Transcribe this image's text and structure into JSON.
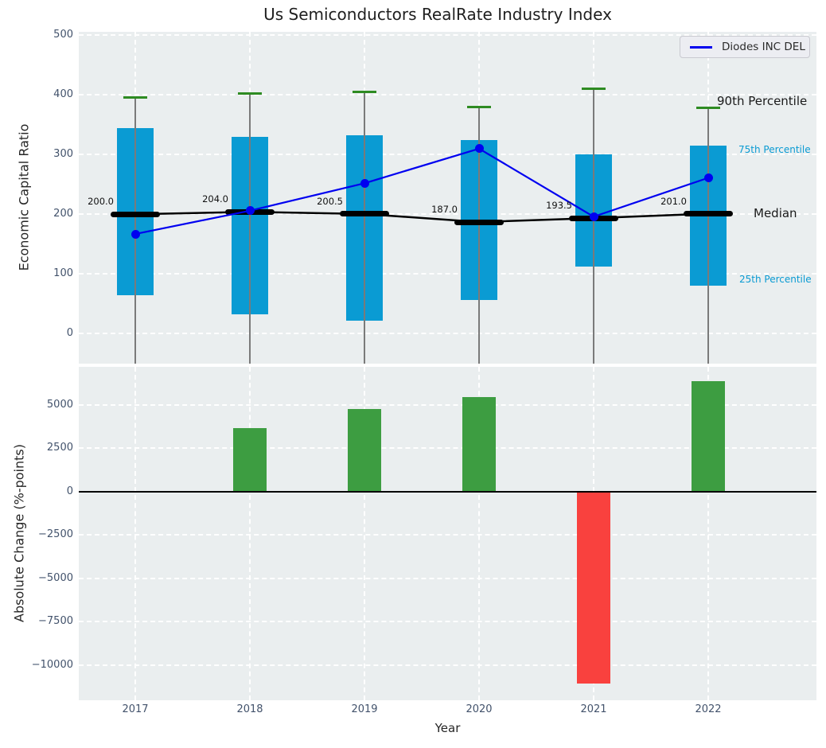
{
  "title": "Us Semiconductors RealRate Industry Index",
  "legend": {
    "label": "Diodes INC DEL",
    "line_color": "#0000ee"
  },
  "right_labels": [
    {
      "text": "90th Percentile",
      "color": "#1a1a1a"
    },
    {
      "text": "75th Percentile",
      "color": "#0a9bd3"
    },
    {
      "text": "Median",
      "color": "#1a1a1a"
    },
    {
      "text": "25th Percentile",
      "color": "#0a9bd3"
    }
  ],
  "colors": {
    "box_fill": "#0a9bd3",
    "p90_cap": "#2e8b22",
    "whisker": "#7a7a7a",
    "median": "#000000",
    "line_series": "#0000f0",
    "bar_positive": "#3d9d41",
    "bar_negative": "#f9413e",
    "axes_background": "#eaeeef",
    "grid": "#ffffff"
  },
  "chart_data": [
    {
      "type": "box",
      "title": "Us Semiconductors RealRate Industry Index",
      "ylabel": "Economic Capital Ratio",
      "categories": [
        "2017",
        "2018",
        "2019",
        "2020",
        "2021",
        "2022"
      ],
      "ylim": [
        -50,
        506
      ],
      "grid": true,
      "yticks": [
        {
          "value": 500,
          "label": "500"
        },
        {
          "value": 400,
          "label": "400"
        },
        {
          "value": 300,
          "label": "300"
        },
        {
          "value": 200,
          "label": "200"
        },
        {
          "value": 100,
          "label": "100"
        },
        {
          "value": 0,
          "label": "0"
        }
      ],
      "boxes": [
        {
          "year": "2017",
          "q25": 65,
          "q75": 345,
          "p90": 396,
          "median": 200.0,
          "median_label": "200.0"
        },
        {
          "year": "2018",
          "q25": 33,
          "q75": 330,
          "p90": 402,
          "median": 204.0,
          "median_label": "204.0"
        },
        {
          "year": "2019",
          "q25": 22,
          "q75": 333,
          "p90": 405,
          "median": 200.5,
          "median_label": "200.5"
        },
        {
          "year": "2020",
          "q25": 57,
          "q75": 324,
          "p90": 380,
          "median": 187.0,
          "median_label": "187.0"
        },
        {
          "year": "2021",
          "q25": 112,
          "q75": 300,
          "p90": 410,
          "median": 193.5,
          "median_label": "193.5"
        },
        {
          "year": "2022",
          "q25": 81,
          "q75": 315,
          "p90": 378,
          "median": 201.0,
          "median_label": "201.0"
        }
      ],
      "series": [
        {
          "name": "Diodes INC DEL",
          "values": [
            167,
            206,
            252,
            310,
            196,
            261
          ]
        }
      ],
      "legend_position": "upper right"
    },
    {
      "type": "bar",
      "ylabel": "Absolute Change (%-points)",
      "xlabel": "Year",
      "categories": [
        "2017",
        "2018",
        "2019",
        "2020",
        "2021",
        "2022"
      ],
      "values": [
        null,
        3670,
        4750,
        5430,
        -11070,
        6360
      ],
      "ylim": [
        -12030,
        7190
      ],
      "grid": true,
      "yticks": [
        {
          "value": 5000,
          "label": "5000"
        },
        {
          "value": 2500,
          "label": "2500"
        },
        {
          "value": 0,
          "label": "0"
        },
        {
          "value": -2500,
          "label": "−2500"
        },
        {
          "value": -5000,
          "label": "−5000"
        },
        {
          "value": -7500,
          "label": "−7500"
        },
        {
          "value": -10000,
          "label": "−10000"
        }
      ]
    }
  ]
}
